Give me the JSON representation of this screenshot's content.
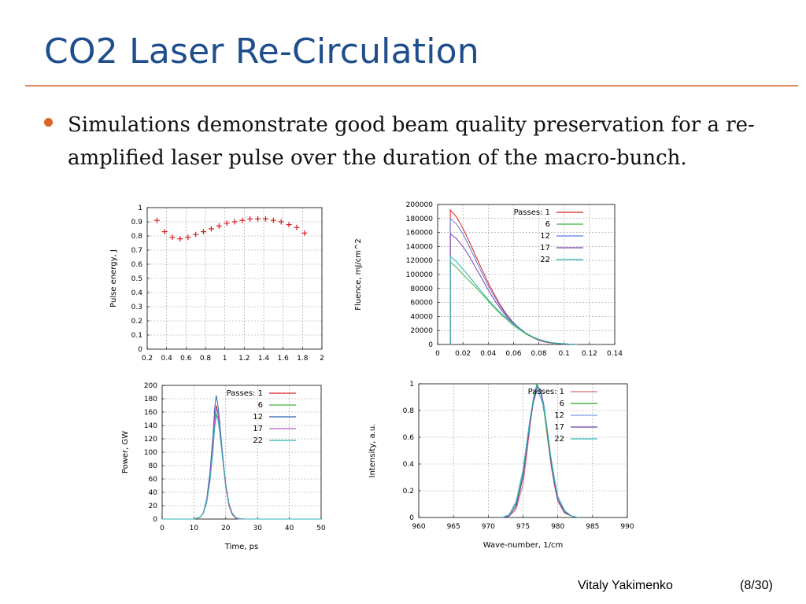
{
  "slide": {
    "title": "CO2 Laser Re-Circulation",
    "bullet": "Simulations demonstrate good beam quality preservation for a re-amplified laser pulse over the duration of the macro-bunch.",
    "footer_author": "Vitaly Yakimenko",
    "footer_page": "(8/30)"
  },
  "chart_data": [
    {
      "type": "scatter",
      "title": "",
      "xlabel": "",
      "ylabel": "Pulse energy, J",
      "xlim": [
        0.2,
        2
      ],
      "ylim": [
        0,
        1
      ],
      "xticks": [
        0.2,
        0.4,
        0.6,
        0.8,
        1,
        1.2,
        1.4,
        1.6,
        1.8,
        2
      ],
      "xtick_labels": [
        "0.2",
        "0.4",
        "0.6",
        "0.8",
        "1",
        "1.2",
        "1.4",
        "1.6",
        "1.8",
        "2"
      ],
      "yticks": [
        0,
        0.1,
        0.2,
        0.3,
        0.4,
        0.5,
        0.6,
        0.7,
        0.8,
        0.9,
        1
      ],
      "ytick_labels": [
        "0",
        "0.1",
        "0.2",
        "0.3",
        "0.4",
        "0.5",
        "0.6",
        "0.7",
        "0.8",
        "0.9",
        "1"
      ],
      "grid": true,
      "marker": "+",
      "color": "#d81e1e",
      "series": [
        {
          "color": "#d81e1e",
          "x": [
            0.3,
            0.38,
            0.46,
            0.54,
            0.62,
            0.7,
            0.78,
            0.86,
            0.94,
            1.02,
            1.1,
            1.18,
            1.26,
            1.34,
            1.42,
            1.5,
            1.58,
            1.66,
            1.74,
            1.82
          ],
          "y": [
            0.91,
            0.83,
            0.79,
            0.78,
            0.79,
            0.81,
            0.83,
            0.85,
            0.87,
            0.89,
            0.9,
            0.91,
            0.92,
            0.92,
            0.92,
            0.91,
            0.9,
            0.88,
            0.86,
            0.82
          ]
        }
      ]
    },
    {
      "type": "line",
      "title": "",
      "xlabel": "",
      "ylabel": "Fluence, mJ/cm^2",
      "xlim": [
        0,
        0.14
      ],
      "ylim": [
        0,
        200000
      ],
      "xticks": [
        0,
        0.02,
        0.04,
        0.06,
        0.08,
        0.1,
        0.12,
        0.14
      ],
      "xtick_labels": [
        "0",
        "0.02",
        "0.04",
        "0.06",
        "0.08",
        "0.1",
        "0.12",
        "0.14"
      ],
      "yticks": [
        0,
        20000,
        40000,
        60000,
        80000,
        100000,
        120000,
        140000,
        160000,
        180000,
        200000
      ],
      "ytick_labels": [
        "0",
        "20000",
        "40000",
        "60000",
        "80000",
        "100000",
        "120000",
        "140000",
        "160000",
        "180000",
        "200000"
      ],
      "grid": true,
      "legend_title": "Passes:",
      "legend_position": "top-right",
      "x": [
        0.01,
        0.015,
        0.02,
        0.025,
        0.03,
        0.035,
        0.04,
        0.045,
        0.05,
        0.055,
        0.06,
        0.065,
        0.07,
        0.075,
        0.08,
        0.085,
        0.09,
        0.1,
        0.11
      ],
      "series": [
        {
          "name": "1",
          "color": "#d81e1e",
          "values": [
            192000,
            182000,
            166000,
            147000,
            127000,
            107000,
            88000,
            71000,
            55000,
            42000,
            31000,
            22000,
            15000,
            10000,
            6000,
            3500,
            2000,
            800,
            0
          ]
        },
        {
          "name": "6",
          "color": "#3cb43c",
          "values": [
            118000,
            110000,
            100000,
            91000,
            82000,
            72000,
            62000,
            52000,
            43000,
            35000,
            27000,
            21000,
            15000,
            10000,
            6500,
            4000,
            2200,
            900,
            0
          ]
        },
        {
          "name": "12",
          "color": "#5a78dc",
          "values": [
            180000,
            172000,
            158000,
            140000,
            121000,
            102000,
            84000,
            68000,
            53000,
            41000,
            31000,
            23000,
            16000,
            11000,
            7000,
            4200,
            2400,
            900,
            0
          ]
        },
        {
          "name": "17",
          "color": "#7a3fb0",
          "values": [
            158000,
            151000,
            140000,
            126000,
            110000,
            94000,
            78000,
            63000,
            50000,
            39000,
            30000,
            22000,
            16000,
            11000,
            7000,
            4300,
            2500,
            900,
            0
          ]
        },
        {
          "name": "22",
          "color": "#2fb4b4",
          "values": [
            126000,
            118000,
            108000,
            97000,
            86000,
            75000,
            64000,
            54000,
            45000,
            37000,
            29000,
            22000,
            16000,
            11000,
            7500,
            4700,
            2700,
            1000,
            0
          ]
        }
      ]
    },
    {
      "type": "line",
      "title": "",
      "xlabel": "Time, ps",
      "ylabel": "Power, GW",
      "xlim": [
        0,
        50
      ],
      "ylim": [
        0,
        200
      ],
      "xticks": [
        0,
        10,
        20,
        30,
        40,
        50
      ],
      "xtick_labels": [
        "0",
        "10",
        "20",
        "30",
        "40",
        "50"
      ],
      "yticks": [
        0,
        20,
        40,
        60,
        80,
        100,
        120,
        140,
        160,
        180,
        200
      ],
      "ytick_labels": [
        "0",
        "20",
        "40",
        "60",
        "80",
        "100",
        "120",
        "140",
        "160",
        "180",
        "200"
      ],
      "grid": true,
      "legend_title": "Passes:",
      "legend_position": "top-right",
      "x": [
        0,
        10,
        12,
        13,
        14,
        15,
        16,
        16.5,
        17,
        17.5,
        18,
        19,
        20,
        21,
        22,
        23,
        24,
        26,
        30,
        50
      ],
      "series": [
        {
          "name": "1",
          "color": "#d81e1e",
          "values": [
            0,
            0,
            3,
            10,
            28,
            62,
            115,
            150,
            170,
            160,
            140,
            90,
            48,
            20,
            7,
            2,
            0,
            0,
            0,
            0
          ]
        },
        {
          "name": "6",
          "color": "#3cb43c",
          "values": [
            0,
            0,
            3,
            9,
            25,
            56,
            105,
            138,
            158,
            152,
            135,
            92,
            52,
            24,
            9,
            3,
            1,
            0,
            0,
            0
          ]
        },
        {
          "name": "12",
          "color": "#2f62b0",
          "values": [
            0,
            0,
            3,
            10,
            30,
            68,
            125,
            165,
            185,
            172,
            150,
            97,
            52,
            22,
            8,
            2,
            0,
            0,
            0,
            0
          ]
        },
        {
          "name": "17",
          "color": "#c05ac8",
          "values": [
            0,
            0,
            3,
            10,
            27,
            60,
            112,
            148,
            166,
            158,
            139,
            92,
            50,
            21,
            8,
            2,
            0,
            0,
            0,
            0
          ]
        },
        {
          "name": "22",
          "color": "#2fb4b4",
          "values": [
            0,
            0,
            3,
            9,
            25,
            55,
            102,
            136,
            154,
            150,
            134,
            92,
            53,
            24,
            9,
            3,
            1,
            0,
            0,
            0
          ]
        }
      ]
    },
    {
      "type": "line",
      "title": "",
      "xlabel": "Wave-number, 1/cm",
      "ylabel": "Intensity, a.u.",
      "xlim": [
        960,
        990
      ],
      "ylim": [
        0,
        1
      ],
      "xticks": [
        960,
        965,
        970,
        975,
        980,
        985,
        990
      ],
      "xtick_labels": [
        "960",
        "965",
        "970",
        "975",
        "980",
        "985",
        "990"
      ],
      "yticks": [
        0,
        0.2,
        0.4,
        0.6,
        0.8,
        1
      ],
      "ytick_labels": [
        "0",
        "0.2",
        "0.4",
        "0.6",
        "0.8",
        "1"
      ],
      "grid": true,
      "legend_title": "Passes:",
      "legend_position": "top-right",
      "x": [
        972,
        973,
        974,
        975,
        975.5,
        976,
        976.5,
        977,
        977.5,
        978,
        978.5,
        979,
        979.5,
        980,
        981,
        982,
        983
      ],
      "series": [
        {
          "name": "1",
          "color": "#e06a6a",
          "values": [
            0,
            0.01,
            0.06,
            0.25,
            0.45,
            0.68,
            0.88,
            0.98,
            0.95,
            0.82,
            0.6,
            0.4,
            0.24,
            0.12,
            0.03,
            0.01,
            0
          ]
        },
        {
          "name": "6",
          "color": "#2e9a2e",
          "values": [
            0,
            0.02,
            0.1,
            0.33,
            0.52,
            0.72,
            0.9,
            1.0,
            0.94,
            0.8,
            0.62,
            0.42,
            0.26,
            0.13,
            0.04,
            0.01,
            0
          ]
        },
        {
          "name": "12",
          "color": "#7aa0e0",
          "values": [
            0,
            0.02,
            0.12,
            0.36,
            0.55,
            0.74,
            0.86,
            0.95,
            0.9,
            0.82,
            0.66,
            0.46,
            0.3,
            0.16,
            0.05,
            0.01,
            0
          ]
        },
        {
          "name": "17",
          "color": "#6a3aa8",
          "values": [
            0,
            0.01,
            0.08,
            0.3,
            0.5,
            0.7,
            0.87,
            0.97,
            0.96,
            0.84,
            0.64,
            0.43,
            0.26,
            0.13,
            0.04,
            0.01,
            0
          ]
        },
        {
          "name": "22",
          "color": "#2fb4b4",
          "values": [
            0,
            0.02,
            0.11,
            0.34,
            0.53,
            0.73,
            0.89,
            0.99,
            0.93,
            0.83,
            0.65,
            0.45,
            0.28,
            0.15,
            0.05,
            0.01,
            0
          ]
        }
      ]
    }
  ]
}
